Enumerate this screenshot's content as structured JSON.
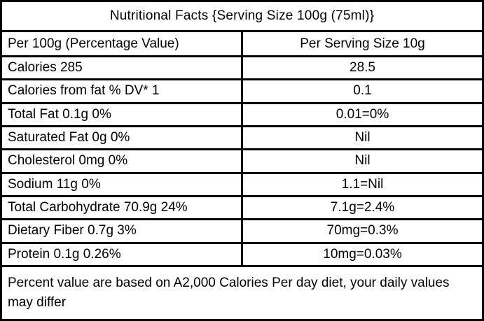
{
  "table": {
    "title": "Nutritional Facts {Serving Size 100g (75ml)}",
    "columns": [
      "Per 100g (Percentage Value)",
      "Per Serving Size 10g"
    ],
    "rows": [
      [
        "Calories 285",
        "28.5"
      ],
      [
        "Calories from fat % DV* 1",
        "0.1"
      ],
      [
        "Total Fat 0.1g 0%",
        "0.01=0%"
      ],
      [
        "Saturated Fat 0g 0%",
        "Nil"
      ],
      [
        "Cholesterol 0mg 0%",
        "Nil"
      ],
      [
        "Sodium 11g 0%",
        "1.1=Nil"
      ],
      [
        "Total Carbohydrate 70.9g 24%",
        "7.1g=2.4%"
      ],
      [
        "Dietary Fiber 0.7g 3%",
        "70mg=0.3%"
      ],
      [
        "Protein 0.1g 0.26%",
        "10mg=0.03%"
      ]
    ],
    "footnote": "Percent value are based on A2,000 Calories Per day diet, your daily values may differ"
  },
  "colors": {
    "border": "#000000",
    "text": "#000000",
    "background": "#ffffff"
  }
}
